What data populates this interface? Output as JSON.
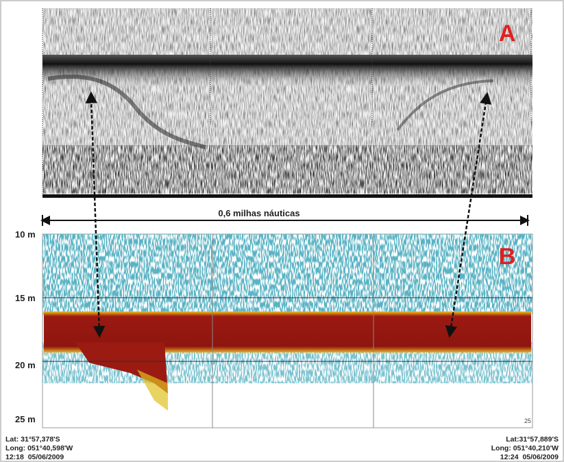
{
  "panel_a": {
    "label": "A"
  },
  "scale_label": "0,6 milhas náuticas",
  "panel_b": {
    "label": "B",
    "depth_labels": [
      "10 m",
      "15 m",
      "20 m",
      "25 m"
    ],
    "corner_mark": "25"
  },
  "start": {
    "lat": "Lat: 31°57,378'S",
    "long": "Long: 051°40,598'W",
    "time": "12:18  05/06/2009"
  },
  "end": {
    "lat": "Lat:31°57,889'S",
    "long": "Long: 051°40,210'W",
    "time": "12:24  05/06/2009"
  }
}
